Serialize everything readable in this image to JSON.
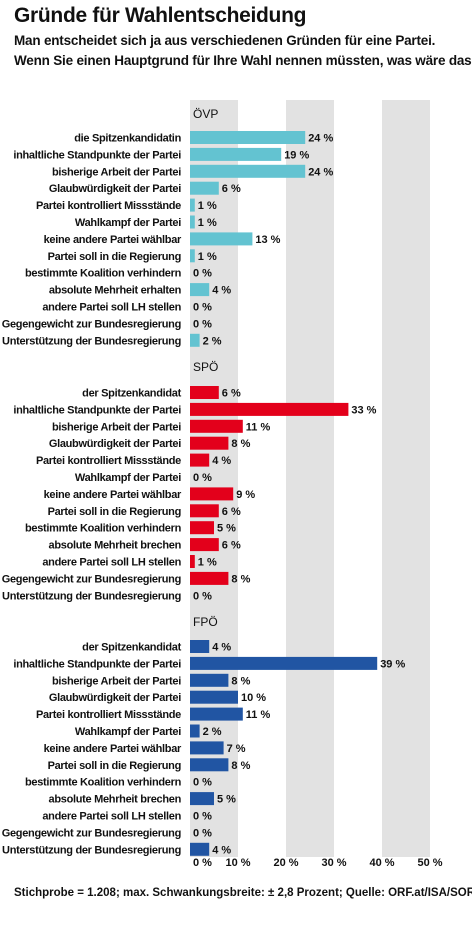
{
  "header": {
    "title": "Gründe für Wahlentscheidung",
    "subtitle_line1": "Man entscheidet sich ja aus verschiedenen Gründen für eine Partei.",
    "subtitle_line2": "Wenn Sie einen Hauptgrund für Ihre Wahl nennen müssten, was wäre das?"
  },
  "footer": {
    "source": "Stichprobe = 1.208; max. Schwankungsbreite: ± 2,8 Prozent; Quelle: ORF.at/ISA/SORA"
  },
  "chart_data": [
    {
      "type": "bar",
      "orientation": "horizontal",
      "group": "ÖVP",
      "color": "#63c3d1",
      "categories": [
        "die Spitzenkandidatin",
        "inhaltliche Standpunkte der Partei",
        "bisherige Arbeit der Partei",
        "Glaubwürdigkeit der Partei",
        "Partei kontrolliert Missstände",
        "Wahlkampf der Partei",
        "keine andere Partei wählbar",
        "Partei soll in die Regierung",
        "bestimmte Koalition verhindern",
        "absolute Mehrheit erhalten",
        "andere Partei soll LH stellen",
        "Gegengewicht zur Bundesregierung",
        "Unterstützung der Bundesregierung"
      ],
      "values": [
        24,
        19,
        24,
        6,
        1,
        1,
        13,
        1,
        0,
        4,
        0,
        0,
        2
      ],
      "value_labels": [
        "24 %",
        "19 %",
        "24 %",
        "6 %",
        "1 %",
        "1 %",
        "13 %",
        "1 %",
        "0 %",
        "4 %",
        "0 %",
        "0 %",
        "2 %"
      ]
    },
    {
      "type": "bar",
      "orientation": "horizontal",
      "group": "SPÖ",
      "color": "#e3001b",
      "categories": [
        "der Spitzenkandidat",
        "inhaltliche Standpunkte der Partei",
        "bisherige Arbeit der Partei",
        "Glaubwürdigkeit der Partei",
        "Partei kontrolliert Missstände",
        "Wahlkampf der Partei",
        "keine andere Partei wählbar",
        "Partei soll in die Regierung",
        "bestimmte Koalition verhindern",
        "absolute Mehrheit brechen",
        "andere Partei soll LH stellen",
        "Gegengewicht zur Bundesregierung",
        "Unterstützung der Bundesregierung"
      ],
      "values": [
        6,
        33,
        11,
        8,
        4,
        0,
        9,
        6,
        5,
        6,
        1,
        8,
        0
      ],
      "value_labels": [
        "6 %",
        "33 %",
        "11 %",
        "8 %",
        "4 %",
        "0 %",
        "9 %",
        "6 %",
        "5 %",
        "6 %",
        "1 %",
        "8 %",
        "0 %"
      ]
    },
    {
      "type": "bar",
      "orientation": "horizontal",
      "group": "FPÖ",
      "color": "#2155a3",
      "categories": [
        "der Spitzenkandidat",
        "inhaltliche Standpunkte der Partei",
        "bisherige Arbeit der Partei",
        "Glaubwürdigkeit der Partei",
        "Partei kontrolliert Missstände",
        "Wahlkampf der Partei",
        "keine andere Partei wählbar",
        "Partei soll in die Regierung",
        "bestimmte Koalition verhindern",
        "absolute Mehrheit brechen",
        "andere Partei soll LH stellen",
        "Gegengewicht zur Bundesregierung",
        "Unterstützung der Bundesregierung"
      ],
      "values": [
        4,
        39,
        8,
        10,
        11,
        2,
        7,
        8,
        0,
        5,
        0,
        0,
        4
      ],
      "value_labels": [
        "4 %",
        "39 %",
        "8 %",
        "10 %",
        "11 %",
        "2 %",
        "7 %",
        "8 %",
        "0 %",
        "5 %",
        "0 %",
        "0 %",
        "4 %"
      ]
    }
  ],
  "axis": {
    "xlim": [
      0,
      50
    ],
    "ticks": [
      "0 %",
      "10 %",
      "20 %",
      "30 %",
      "40 %",
      "50 %"
    ],
    "band_colors": [
      "#e2e2e2",
      "#ffffff"
    ]
  }
}
